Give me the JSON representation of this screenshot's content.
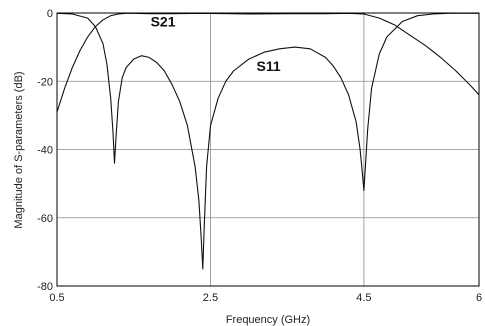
{
  "chart_data": {
    "type": "line",
    "xlabel": "Frequency (GHz)",
    "ylabel": "Magnitude of S-parameters (dB)",
    "xlim": [
      0.5,
      6
    ],
    "ylim": [
      -80,
      0
    ],
    "x_ticks": [
      0.5,
      2.5,
      4.5,
      6
    ],
    "x_tick_labels": [
      "0.5",
      "2.5",
      "4.5",
      "6"
    ],
    "y_ticks": [
      0,
      -20,
      -40,
      -60,
      -80
    ],
    "y_tick_labels": [
      "0",
      "-20",
      "-40",
      "-60",
      "-80"
    ],
    "grid": true,
    "annotations": [
      {
        "text": "S21",
        "x": 1.72,
        "y": -4
      },
      {
        "text": "S11",
        "x": 3.1,
        "y": -17
      }
    ],
    "series": [
      {
        "name": "S21",
        "x": [
          0.5,
          0.6,
          0.7,
          0.8,
          0.9,
          1.0,
          1.1,
          1.2,
          1.3,
          1.4,
          1.5,
          1.7,
          2.0,
          2.4,
          3.0,
          3.5,
          4.0,
          4.3,
          4.5,
          4.7,
          4.9,
          5.1,
          5.3,
          5.5,
          5.7,
          5.9,
          6.0
        ],
        "y": [
          -29,
          -22,
          -16,
          -11,
          -7,
          -4,
          -2,
          -0.8,
          -0.3,
          -0.1,
          -0.1,
          -0.2,
          -0.2,
          -0.1,
          -0.3,
          -0.2,
          -0.2,
          -0.1,
          -0.3,
          -1.5,
          -3.5,
          -6.5,
          -9.5,
          -13,
          -17,
          -21.5,
          -24
        ]
      },
      {
        "name": "S11",
        "x": [
          0.5,
          0.7,
          0.9,
          1.0,
          1.1,
          1.15,
          1.2,
          1.23,
          1.25,
          1.27,
          1.3,
          1.35,
          1.4,
          1.5,
          1.6,
          1.7,
          1.8,
          1.9,
          2.0,
          2.1,
          2.2,
          2.3,
          2.35,
          2.38,
          2.4,
          2.42,
          2.45,
          2.5,
          2.6,
          2.7,
          2.8,
          3.0,
          3.2,
          3.4,
          3.6,
          3.8,
          4.0,
          4.1,
          4.2,
          4.3,
          4.4,
          4.45,
          4.48,
          4.5,
          4.52,
          4.55,
          4.6,
          4.7,
          4.8,
          5.0,
          5.2,
          5.4,
          5.6,
          5.8,
          6.0
        ],
        "y": [
          -0.1,
          -0.3,
          -1.5,
          -4,
          -9,
          -15,
          -25,
          -35,
          -44,
          -36,
          -26,
          -19,
          -16,
          -13.5,
          -12.5,
          -13,
          -14.5,
          -17,
          -21,
          -26,
          -33,
          -45,
          -55,
          -66,
          -75,
          -62,
          -45,
          -33,
          -25,
          -20,
          -17,
          -13.5,
          -11.5,
          -10.5,
          -10,
          -10.5,
          -13,
          -15.5,
          -19,
          -24,
          -32,
          -40,
          -47,
          -52,
          -45,
          -34,
          -22,
          -12,
          -7,
          -2.5,
          -0.8,
          -0.3,
          -0.1,
          -0.05,
          -0.1
        ]
      }
    ]
  }
}
